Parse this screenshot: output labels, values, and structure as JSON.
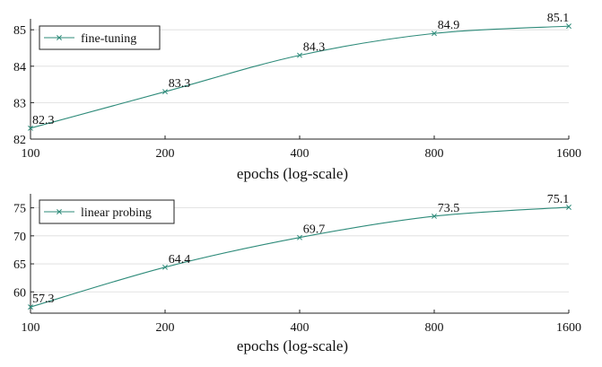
{
  "chart_data": [
    {
      "type": "line",
      "x": [
        100,
        200,
        400,
        800,
        1600
      ],
      "xticks": [
        "100",
        "200",
        "400",
        "800",
        "1600"
      ],
      "xscale": "log",
      "xlabel": "epochs (log-scale)",
      "ylabel": "",
      "ylim": [
        82,
        85.3
      ],
      "yticks": [
        82,
        83,
        84,
        85
      ],
      "grid": "horizontal",
      "legend": "top-left",
      "series": [
        {
          "name": "fine-tuning",
          "values": [
            82.3,
            83.3,
            84.3,
            84.9,
            85.1
          ],
          "labels": [
            "82.3",
            "83.3",
            "84.3",
            "84.9",
            "85.1"
          ],
          "color": "#2e8b7a",
          "marker": "x"
        }
      ]
    },
    {
      "type": "line",
      "x": [
        100,
        200,
        400,
        800,
        1600
      ],
      "xticks": [
        "100",
        "200",
        "400",
        "800",
        "1600"
      ],
      "xscale": "log",
      "xlabel": "epochs (log-scale)",
      "ylabel": "",
      "ylim": [
        56.2,
        77.5
      ],
      "yticks": [
        60,
        65,
        70,
        75
      ],
      "grid": "horizontal",
      "legend": "top-left",
      "series": [
        {
          "name": "linear probing",
          "values": [
            57.3,
            64.4,
            69.7,
            73.5,
            75.1
          ],
          "labels": [
            "57.3",
            "64.4",
            "69.7",
            "73.5",
            "75.1"
          ],
          "color": "#2e8b7a",
          "marker": "x"
        }
      ]
    }
  ]
}
